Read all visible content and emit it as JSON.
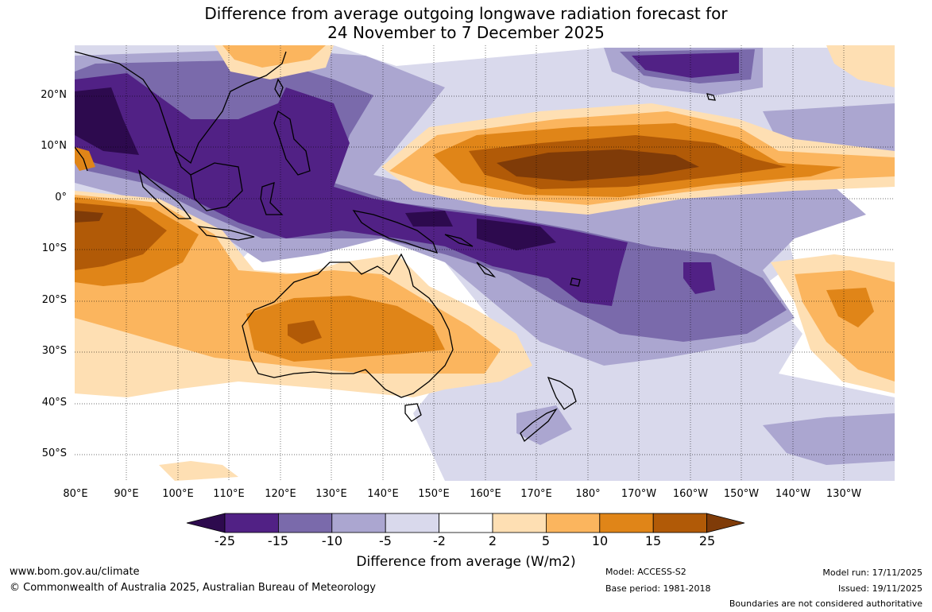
{
  "title": {
    "line1": "Difference from average outgoing longwave radiation forecast for",
    "line2": "24 November to 7 December 2025"
  },
  "map": {
    "lat_labels": [
      "20°N",
      "10°N",
      "0°",
      "10°S",
      "20°S",
      "30°S",
      "40°S",
      "50°S"
    ],
    "lon_labels": [
      "80°E",
      "90°E",
      "100°E",
      "110°E",
      "120°E",
      "130°E",
      "140°E",
      "150°E",
      "160°E",
      "170°E",
      "180°",
      "170°W",
      "160°W",
      "150°W",
      "140°W",
      "130°W"
    ]
  },
  "colorbar": {
    "title": "Difference from average (W/m2)",
    "ticks": [
      "-25",
      "-15",
      "-10",
      "-5",
      "-2",
      "2",
      "5",
      "10",
      "15",
      "25"
    ],
    "colors": [
      "#2d0a4e",
      "#512185",
      "#7a6aab",
      "#aba6d0",
      "#d9d9ec",
      "#ffffff",
      "#fedfb3",
      "#fbb55e",
      "#e08518",
      "#b15a07",
      "#7f3b08"
    ]
  },
  "footer": {
    "url": "www.bom.gov.au/climate",
    "copyright": "© Commonwealth of Australia 2025, Australian Bureau of Meteorology",
    "model": "Model: ACCESS-S2",
    "base_period": "Base period: 1981-2018",
    "model_run": "Model run: 17/11/2025",
    "issued": "Issued: 19/11/2025",
    "disclaimer": "Boundaries are not considered authoritative"
  }
}
